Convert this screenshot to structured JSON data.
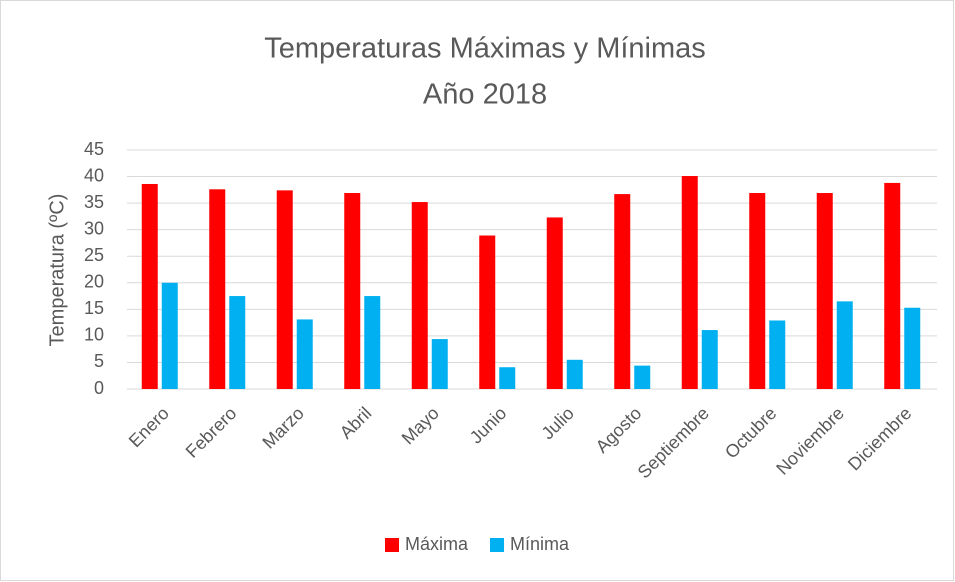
{
  "chart_data": {
    "type": "bar",
    "title": "Temperaturas Máximas y Mínimas",
    "subtitle": "Año 2018",
    "y_label": "Temperatura (ºC)",
    "categories": [
      "Enero",
      "Febrero",
      "Marzo",
      "Abril",
      "Mayo",
      "Junio",
      "Julio",
      "Agosto",
      "Septiembre",
      "Octubre",
      "Noviembre",
      "Diciembre"
    ],
    "series": [
      {
        "name": "Máxima",
        "color": "#ff0000",
        "values": [
          38.6,
          37.6,
          37.4,
          36.9,
          35.2,
          28.9,
          32.3,
          36.7,
          40.1,
          36.9,
          36.9,
          38.8
        ]
      },
      {
        "name": "Mínima",
        "color": "#00b0f0",
        "values": [
          20.0,
          17.5,
          13.1,
          17.5,
          9.4,
          4.1,
          5.5,
          4.4,
          11.1,
          12.9,
          16.5,
          15.3
        ]
      }
    ],
    "ylim": [
      0,
      45
    ],
    "yticks": [
      0,
      5,
      10,
      15,
      20,
      25,
      30,
      35,
      40,
      45
    ],
    "grid": true,
    "legend": "bottom"
  }
}
